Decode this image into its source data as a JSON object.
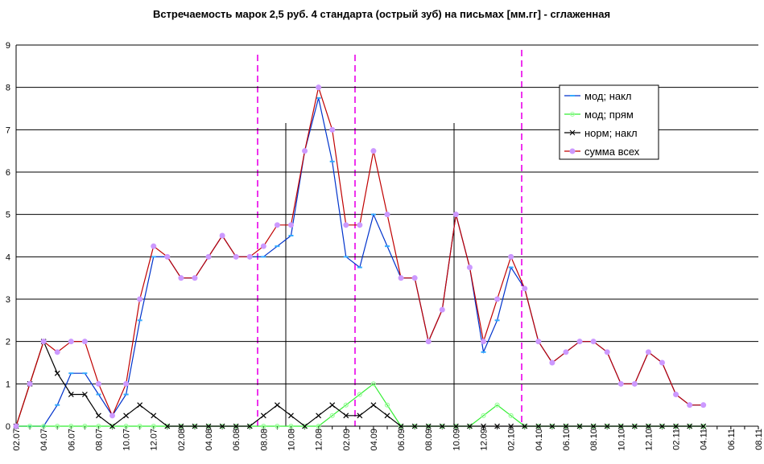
{
  "chart_data": {
    "type": "line",
    "title": "Встречаемость марок 2,5 руб. 4 стандарта (острый зуб) на письмах [мм.гг] - сглаженная",
    "categories": [
      "02.07",
      null,
      "04.07",
      null,
      "06.07",
      null,
      "08.07",
      null,
      "10.07",
      null,
      "12.07",
      null,
      "02.08",
      null,
      "04.08",
      null,
      "06.08",
      null,
      "08.08",
      null,
      "10.08",
      null,
      "12.08",
      null,
      "02.09",
      null,
      "04.09",
      null,
      "06.09",
      null,
      "08.09",
      null,
      "10.09",
      null,
      "12.09",
      null,
      "02.10",
      null,
      "04.10",
      null,
      "06.10",
      null,
      "08.10",
      null,
      "10.10",
      null,
      "12.10",
      null,
      "02.11",
      null,
      "04.11",
      null,
      "06.11",
      null,
      "08.11"
    ],
    "series": [
      {
        "name": "мод; накл",
        "color": "#0033cc",
        "marker": "dash",
        "marker_color": "#33aaff",
        "values": [
          0,
          0,
          0,
          0.5,
          1.25,
          1.25,
          0.75,
          0.25,
          0.75,
          2.5,
          4,
          4,
          3.5,
          3.5,
          4,
          4.5,
          4,
          4,
          4,
          4.25,
          4.5,
          6.5,
          7.75,
          6.25,
          4,
          3.75,
          5,
          4.25,
          3.5,
          3.5,
          2,
          2.75,
          5,
          3.75,
          1.75,
          2.5,
          3.75,
          3.25,
          2,
          1.5,
          1.75,
          2,
          2,
          1.75,
          1,
          1,
          1.75,
          1.5,
          0.75,
          0.5,
          0.5,
          null,
          null,
          null,
          null
        ]
      },
      {
        "name": "мод; прям",
        "color": "#33ee33",
        "marker": "circle",
        "marker_color": "#99ff99",
        "values": [
          0,
          0,
          0,
          0,
          0,
          0,
          0,
          0,
          0,
          0,
          0,
          0,
          0,
          0,
          0,
          0,
          0,
          0,
          0,
          0,
          0,
          0,
          0,
          0.25,
          0.5,
          0.75,
          1,
          0.5,
          0,
          0,
          0,
          0,
          0,
          0,
          0.25,
          0.5,
          0.25,
          0,
          0,
          0,
          0,
          0,
          0,
          0,
          0,
          0,
          0,
          0,
          0,
          0,
          0,
          null,
          null,
          null,
          null
        ]
      },
      {
        "name": "норм; накл",
        "color": "#000000",
        "marker": "x",
        "marker_color": "#000000",
        "values": [
          0,
          1,
          2,
          1.25,
          0.75,
          0.75,
          0.25,
          0,
          0.25,
          0.5,
          0.25,
          0,
          0,
          0,
          0,
          0,
          0,
          0,
          0.25,
          0.5,
          0.25,
          0,
          0.25,
          0.5,
          0.25,
          0.25,
          0.5,
          0.25,
          0,
          0,
          0,
          0,
          0,
          0,
          0,
          0,
          0,
          0,
          0,
          0,
          0,
          0,
          0,
          0,
          0,
          0,
          0,
          0,
          0,
          0,
          0,
          null,
          null,
          null,
          null
        ]
      },
      {
        "name": "сумма всех",
        "color": "#c00000",
        "marker": "dot",
        "marker_color": "#cc99ff",
        "values": [
          0,
          1,
          2,
          1.75,
          2,
          2,
          1,
          0.25,
          1,
          3,
          4.25,
          4,
          3.5,
          3.5,
          4,
          4.5,
          4,
          4,
          4.25,
          4.75,
          4.75,
          6.5,
          8,
          7,
          4.75,
          4.75,
          6.5,
          5,
          3.5,
          3.5,
          2,
          2.75,
          5,
          3.75,
          2,
          3,
          4,
          3.25,
          2,
          1.5,
          1.75,
          2,
          2,
          1.75,
          1,
          1,
          1.75,
          1.5,
          0.75,
          0.5,
          0.5,
          null,
          null,
          null,
          null
        ]
      }
    ],
    "ylim": [
      0,
      9
    ],
    "yticks": [
      0,
      1,
      2,
      3,
      4,
      5,
      6,
      7,
      8,
      9
    ],
    "grid": true
  }
}
